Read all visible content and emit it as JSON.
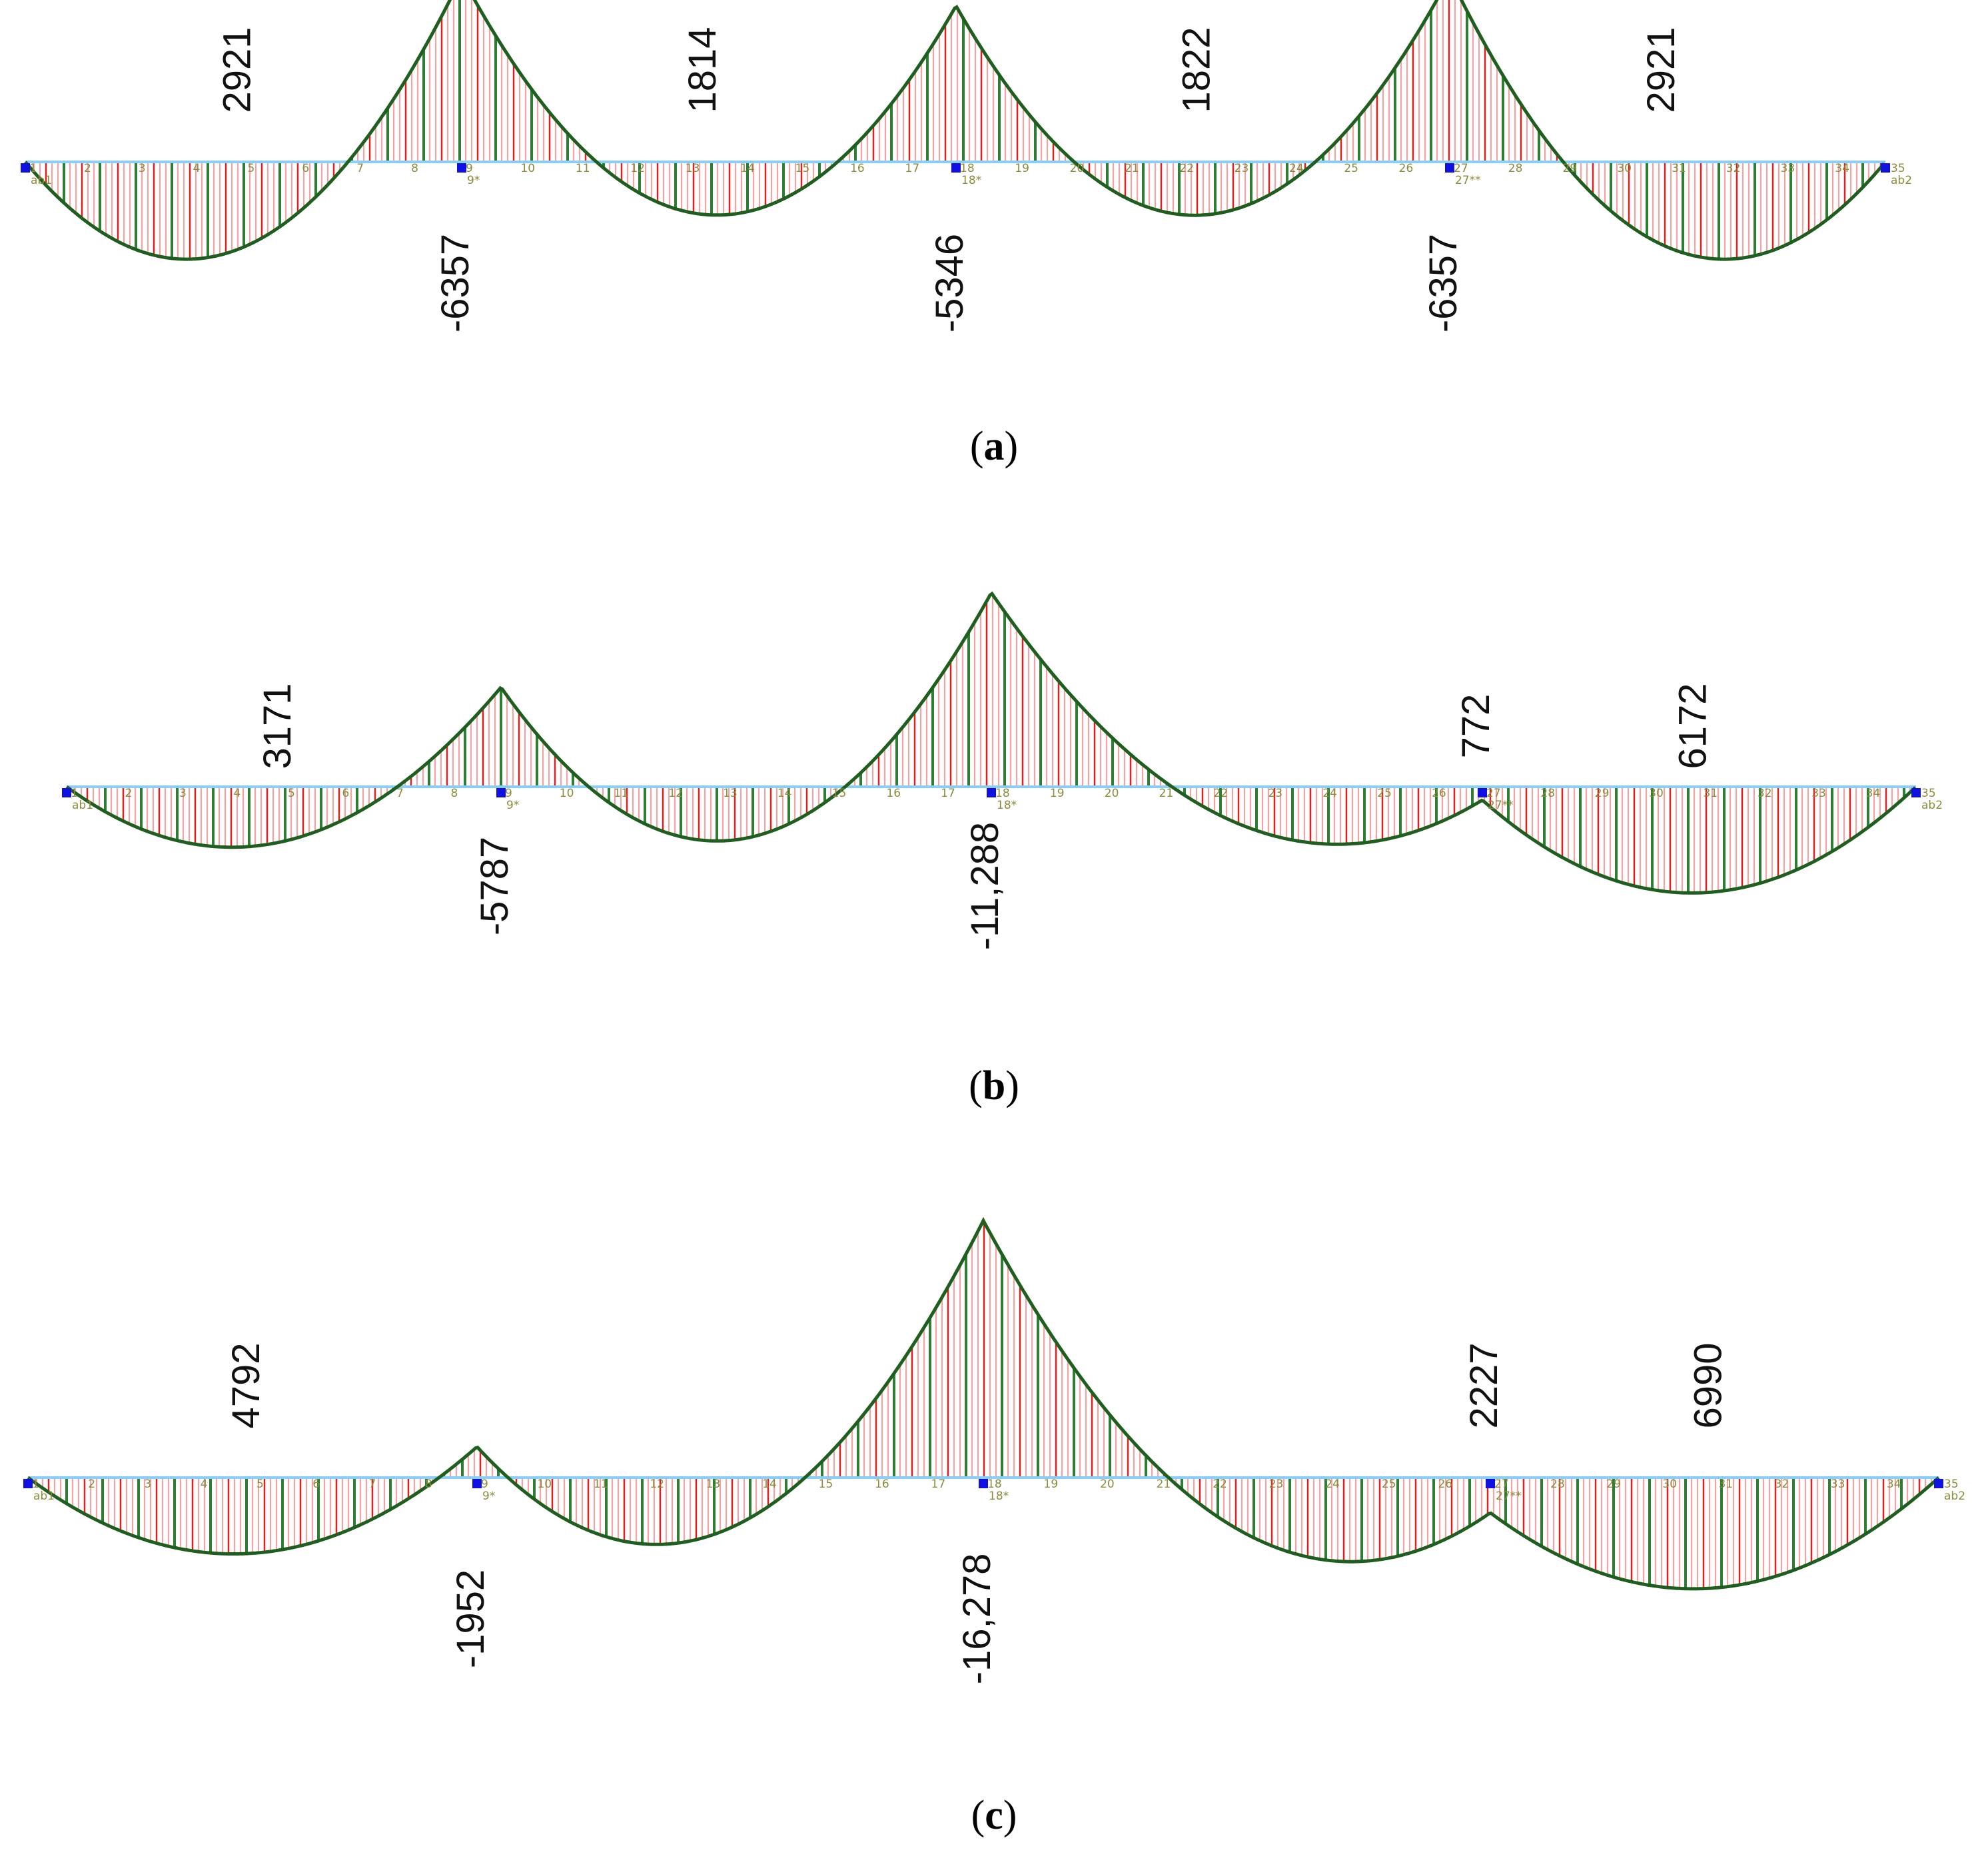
{
  "colors": {
    "baseline": "#87cefa",
    "envelope": "#1e5e1e",
    "hatch_light": "#f4a3a3",
    "hatch_red": "#e02020",
    "hatch_green": "#2e7d32",
    "support": "#1010e0",
    "node_label": "#8b8b3a"
  },
  "panels": [
    {
      "caption_letter": "a",
      "node_count": 35,
      "node_suffixes": {
        "1": "ab1",
        "9": "9*",
        "18": "18*",
        "27": "27**",
        "35": "ab2"
      },
      "supports": [
        1,
        9,
        18,
        27,
        35
      ],
      "values": [
        {
          "text": "2921",
          "kind": "span",
          "span": 0,
          "value": 2921
        },
        {
          "text": "1814",
          "kind": "span",
          "span": 1,
          "value": 1814
        },
        {
          "text": "1822",
          "kind": "span",
          "span": 2,
          "value": 1822
        },
        {
          "text": "2921",
          "kind": "span",
          "span": 3,
          "value": 2921
        },
        {
          "text": "-6357",
          "kind": "support",
          "support": 1,
          "value": -6357
        },
        {
          "text": "-5346",
          "kind": "support",
          "support": 2,
          "value": -5346
        },
        {
          "text": "-6357",
          "kind": "support",
          "support": 3,
          "value": -6357
        }
      ]
    },
    {
      "caption_letter": "b",
      "node_count": 35,
      "node_suffixes": {
        "1": "ab1",
        "9": "9*",
        "18": "18*",
        "27": "27**",
        "35": "ab2"
      },
      "supports": [
        1,
        9,
        18,
        27,
        35
      ],
      "values": [
        {
          "text": "3171",
          "kind": "span",
          "span": 0,
          "value": 3171
        },
        {
          "text": "-5787",
          "kind": "support",
          "support": 1,
          "value": -5787
        },
        {
          "text": "-11,288",
          "kind": "support",
          "support": 2,
          "value": -11288
        },
        {
          "text": "772",
          "kind": "support",
          "support": 3,
          "value": 772
        },
        {
          "text": "6172",
          "kind": "span",
          "span": 3,
          "value": 6172
        }
      ]
    },
    {
      "caption_letter": "c",
      "node_count": 35,
      "node_suffixes": {
        "1": "ab1",
        "9": "9*",
        "18": "18*",
        "27": "27**",
        "35": "ab2"
      },
      "supports": [
        1,
        9,
        18,
        27,
        35
      ],
      "values": [
        {
          "text": "4792",
          "kind": "span",
          "span": 0,
          "value": 4792
        },
        {
          "text": "-1952",
          "kind": "support",
          "support": 1,
          "value": -1952
        },
        {
          "text": "-16,278",
          "kind": "support",
          "support": 2,
          "value": -16278
        },
        {
          "text": "2227",
          "kind": "support",
          "support": 3,
          "value": 2227
        },
        {
          "text": "6990",
          "kind": "span",
          "span": 3,
          "value": 6990
        }
      ]
    }
  ]
}
